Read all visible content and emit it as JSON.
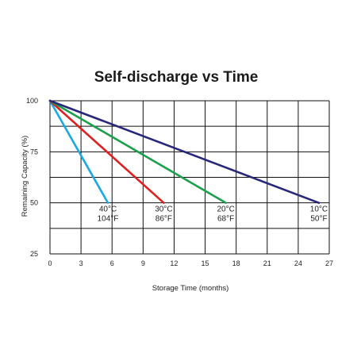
{
  "chart_data": {
    "type": "line",
    "title": "Self-discharge vs Time",
    "xlabel": "Storage Time (months)",
    "ylabel": "Remaining Capacity (%)",
    "xlim": [
      0,
      27
    ],
    "ylim": [
      25,
      100
    ],
    "xticks": [
      "0",
      "3",
      "6",
      "9",
      "12",
      "15",
      "18",
      "21",
      "24",
      "27"
    ],
    "yticks": [
      "100",
      "75",
      "50",
      "25"
    ],
    "grid": true,
    "series": [
      {
        "name": "40°C 104°F",
        "label_c": "40°C",
        "label_f": "104°F",
        "color": "#1ba9e1",
        "x": [
          0,
          5.6
        ],
        "y": [
          100,
          50
        ]
      },
      {
        "name": "30°C 86°F",
        "label_c": "30°C",
        "label_f": "86°F",
        "color": "#e02020",
        "x": [
          0,
          11
        ],
        "y": [
          100,
          50
        ]
      },
      {
        "name": "20°C 68°F",
        "label_c": "20°C",
        "label_f": "68°F",
        "color": "#1aa04a",
        "x": [
          0,
          17
        ],
        "y": [
          100,
          50
        ]
      },
      {
        "name": "10°C 50°F",
        "label_c": "10°C",
        "label_f": "50°F",
        "color": "#27287a",
        "x": [
          0,
          26
        ],
        "y": [
          100,
          50
        ]
      }
    ]
  }
}
